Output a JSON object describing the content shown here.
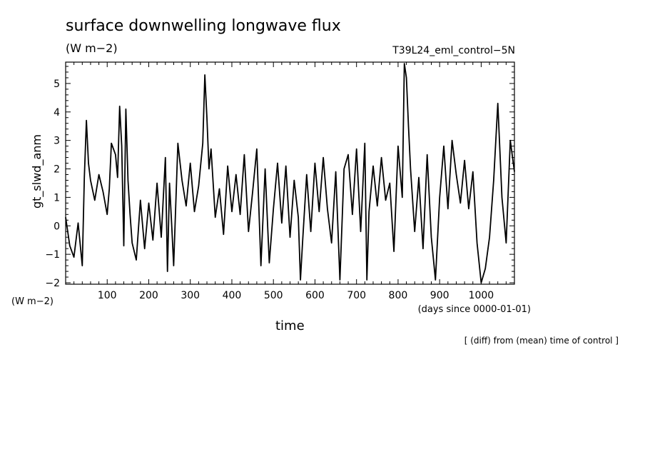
{
  "chart_data": {
    "type": "line",
    "title": "surface downwelling longwave flux",
    "units_top": "(W m−2)",
    "run_label": "T39L24_eml_control−5N",
    "units_left": "(W m−2)",
    "xlabel": "time",
    "xunit_label": "(days since 0000-01-01)",
    "ylabel": "gt_slwd_anm",
    "footnote": "[ (diff) from (mean) time of control ]",
    "xlim": [
      0,
      1080
    ],
    "ylim": [
      -2.05,
      5.75
    ],
    "x_ticks": [
      100,
      200,
      300,
      400,
      500,
      600,
      700,
      800,
      900,
      1000
    ],
    "x_tick_labels": [
      "100",
      "200",
      "300",
      "400",
      "500",
      "600",
      "700",
      "800",
      "900",
      "1000"
    ],
    "y_ticks": [
      -2,
      -1,
      0,
      1,
      2,
      3,
      4,
      5
    ],
    "y_tick_labels": [
      "−2",
      "−1",
      "0",
      "1",
      "2",
      "3",
      "4",
      "5"
    ],
    "grid": false,
    "line_color": "#000000",
    "series": [
      {
        "x": [
          0,
          10,
          20,
          30,
          40,
          45,
          50,
          55,
          60,
          70,
          80,
          90,
          100,
          105,
          110,
          120,
          125,
          130,
          135,
          140,
          145,
          150,
          155,
          160,
          170,
          180,
          190,
          200,
          210,
          220,
          230,
          240,
          245,
          250,
          255,
          260,
          270,
          280,
          290,
          300,
          310,
          320,
          330,
          335,
          340,
          345,
          350,
          360,
          370,
          380,
          390,
          400,
          410,
          420,
          430,
          440,
          450,
          460,
          470,
          480,
          490,
          500,
          510,
          520,
          530,
          540,
          550,
          560,
          565,
          570,
          580,
          590,
          600,
          610,
          620,
          630,
          640,
          650,
          660,
          670,
          680,
          690,
          700,
          710,
          720,
          725,
          730,
          740,
          750,
          760,
          770,
          780,
          790,
          800,
          810,
          815,
          820,
          825,
          830,
          840,
          850,
          860,
          870,
          880,
          890,
          900,
          910,
          920,
          930,
          940,
          950,
          960,
          970,
          980,
          990,
          1000,
          1010,
          1020,
          1030,
          1040,
          1050,
          1060,
          1070,
          1080
        ],
        "y": [
          0.3,
          -0.7,
          -1.1,
          0.1,
          -1.4,
          1.7,
          3.7,
          2.2,
          1.6,
          0.9,
          1.8,
          1.2,
          0.4,
          1.3,
          2.9,
          2.5,
          1.7,
          4.2,
          2.8,
          -0.7,
          4.1,
          1.6,
          0.4,
          -0.6,
          -1.2,
          0.9,
          -0.8,
          0.8,
          -0.5,
          1.5,
          -0.4,
          2.4,
          -1.6,
          1.5,
          0.1,
          -1.4,
          2.9,
          1.6,
          0.7,
          2.2,
          0.5,
          1.4,
          2.9,
          5.3,
          3.8,
          2.0,
          2.7,
          0.3,
          1.3,
          -0.3,
          2.1,
          0.5,
          1.8,
          0.4,
          2.5,
          -0.2,
          1.2,
          2.7,
          -1.4,
          2.0,
          -1.3,
          0.6,
          2.2,
          0.1,
          2.1,
          -0.4,
          1.6,
          0.3,
          -1.9,
          -0.6,
          1.8,
          -0.2,
          2.2,
          0.5,
          2.4,
          0.6,
          -0.6,
          1.9,
          -1.9,
          2.0,
          2.5,
          0.4,
          2.7,
          -0.2,
          2.9,
          -1.9,
          0.5,
          2.1,
          0.7,
          2.4,
          0.9,
          1.5,
          -0.9,
          2.8,
          1.0,
          5.7,
          5.2,
          3.5,
          2.0,
          -0.2,
          1.7,
          -0.8,
          2.5,
          -0.4,
          -1.9,
          1.0,
          2.8,
          0.6,
          3.0,
          1.8,
          0.8,
          2.3,
          0.6,
          1.9,
          -0.6,
          -2.0,
          -1.5,
          -0.4,
          1.6,
          4.3,
          1.0,
          -0.6,
          3.0,
          1.9
        ]
      }
    ]
  }
}
